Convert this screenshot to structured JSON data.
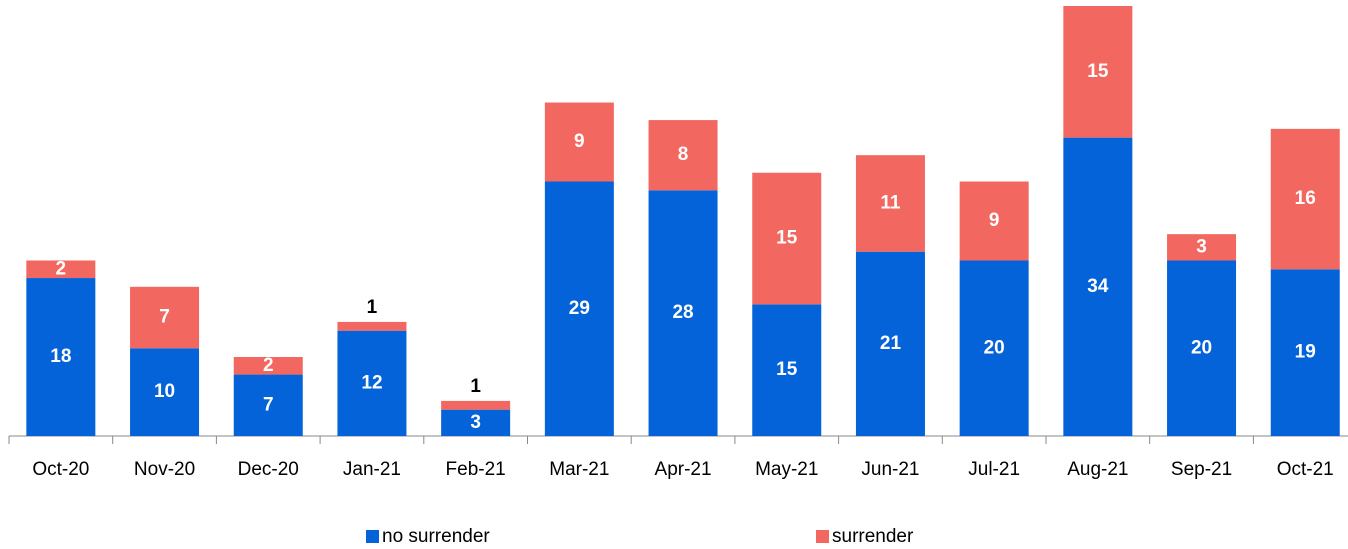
{
  "chart_data": {
    "type": "stacked-bar",
    "categories": [
      "Oct-20",
      "Nov-20",
      "Dec-20",
      "Jan-21",
      "Feb-21",
      "Mar-21",
      "Apr-21",
      "May-21",
      "Jun-21",
      "Jul-21",
      "Aug-21",
      "Sep-21",
      "Oct-21"
    ],
    "series": [
      {
        "name": "no surrender",
        "color": "#0563d9",
        "values": [
          18,
          10,
          7,
          12,
          3,
          29,
          28,
          15,
          21,
          20,
          34,
          20,
          19
        ]
      },
      {
        "name": "surrender",
        "color": "#f2675f",
        "values": [
          2,
          7,
          2,
          1,
          1,
          9,
          8,
          15,
          11,
          9,
          15,
          3,
          16
        ]
      }
    ]
  }
}
